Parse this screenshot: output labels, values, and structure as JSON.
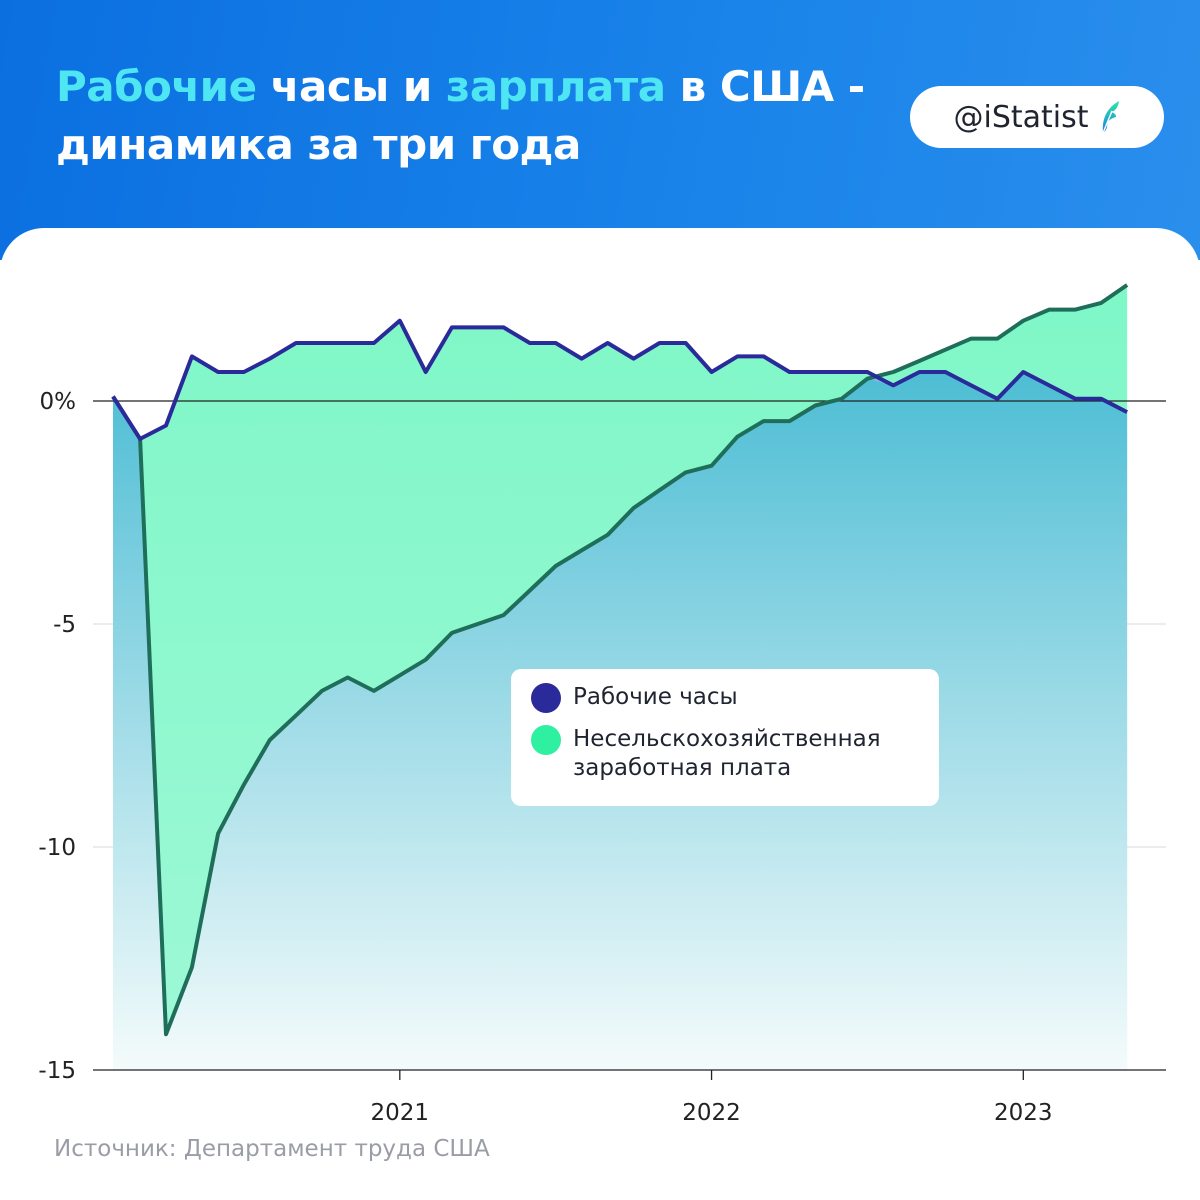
{
  "header": {
    "title_parts": [
      {
        "text": "Рабочие",
        "highlight": true
      },
      {
        "text": " часы и ",
        "highlight": false
      },
      {
        "text": "зарплата",
        "highlight": true
      },
      {
        "text": " в США -",
        "highlight": false
      },
      {
        "text": "динамика за три года",
        "highlight": false,
        "break_before": true
      }
    ],
    "brand": "@iStatist",
    "brand_icon": "feather-leaf-icon"
  },
  "colors": {
    "header_blue": "#0b6fe0",
    "title_highlight": "#4fe6f3",
    "hours_line": "#2a2a9a",
    "wages_line": "#1f6e5a",
    "hours_dot": "#2a2a9a",
    "wages_dot": "#2ef0a0"
  },
  "chart_data": {
    "type": "area",
    "x_ticks": [
      {
        "x": 2021,
        "label": "2021"
      },
      {
        "x": 2022,
        "label": "2022"
      },
      {
        "x": 2023,
        "label": "2023"
      }
    ],
    "y_ticks": [
      {
        "y": 0,
        "label": "0%"
      },
      {
        "y": -5,
        "label": "-5"
      },
      {
        "y": -10,
        "label": "-10"
      },
      {
        "y": -15,
        "label": "-15"
      }
    ],
    "xlim": [
      2020.08,
      2023.4
    ],
    "ylim": [
      -15,
      2.6
    ],
    "grid": true,
    "legend_position": "center-right",
    "series": [
      {
        "name": "Рабочие часы",
        "x": [
          2020.08,
          2020.167,
          2020.25,
          2020.333,
          2020.417,
          2020.5,
          2020.583,
          2020.667,
          2020.75,
          2020.833,
          2020.917,
          2021.0,
          2021.083,
          2021.167,
          2021.25,
          2021.333,
          2021.417,
          2021.5,
          2021.583,
          2021.667,
          2021.75,
          2021.833,
          2021.917,
          2022.0,
          2022.083,
          2022.167,
          2022.25,
          2022.333,
          2022.417,
          2022.5,
          2022.583,
          2022.667,
          2022.75,
          2022.833,
          2022.917,
          2023.0,
          2023.083,
          2023.167,
          2023.25,
          2023.333
        ],
        "values": [
          0.1,
          -0.85,
          -0.55,
          1.0,
          0.65,
          0.65,
          0.95,
          1.3,
          1.3,
          1.3,
          1.3,
          1.8,
          0.65,
          1.65,
          1.65,
          1.65,
          1.3,
          1.3,
          0.95,
          1.3,
          0.95,
          1.3,
          1.3,
          0.65,
          1.0,
          1.0,
          0.65,
          0.65,
          0.65,
          0.65,
          0.35,
          0.65,
          0.65,
          0.35,
          0.05,
          0.65,
          0.35,
          0.05,
          0.05,
          -0.25
        ]
      },
      {
        "name": "Несельскохозяйственная заработная плата",
        "x": [
          2020.08,
          2020.167,
          2020.25,
          2020.333,
          2020.417,
          2020.5,
          2020.583,
          2020.667,
          2020.75,
          2020.833,
          2020.917,
          2021.0,
          2021.083,
          2021.167,
          2021.25,
          2021.333,
          2021.417,
          2021.5,
          2021.583,
          2021.667,
          2021.75,
          2021.833,
          2021.917,
          2022.0,
          2022.083,
          2022.167,
          2022.25,
          2022.333,
          2022.417,
          2022.5,
          2022.583,
          2022.667,
          2022.75,
          2022.833,
          2022.917,
          2023.0,
          2023.083,
          2023.167,
          2023.25,
          2023.333
        ],
        "values": [
          0.1,
          -0.85,
          -14.2,
          -12.7,
          -9.7,
          -8.6,
          -7.6,
          -7.05,
          -6.5,
          -6.2,
          -6.5,
          -6.15,
          -5.8,
          -5.2,
          -5.0,
          -4.8,
          -4.25,
          -3.7,
          -3.35,
          -3.0,
          -2.4,
          -2.0,
          -1.6,
          -1.45,
          -0.8,
          -0.45,
          -0.45,
          -0.1,
          0.05,
          0.5,
          0.65,
          0.9,
          1.15,
          1.4,
          1.4,
          1.8,
          2.05,
          2.05,
          2.2,
          2.6
        ]
      }
    ]
  },
  "legend": [
    {
      "label": "Рабочие часы",
      "color": "#2a2a9a"
    },
    {
      "label": "Несельскохозяйственная заработная плата",
      "color": "#2ef0a0"
    }
  ],
  "footer": {
    "source": "Источник: Департамент труда США"
  }
}
